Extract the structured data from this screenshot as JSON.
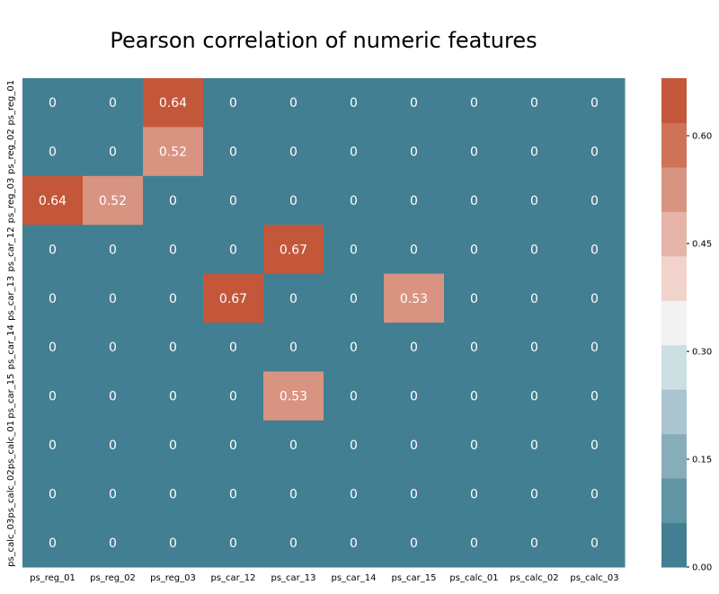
{
  "chart_data": {
    "type": "heatmap",
    "title": "Pearson correlation of numeric features",
    "x_labels": [
      "ps_reg_01",
      "ps_reg_02",
      "ps_reg_03",
      "ps_car_12",
      "ps_car_13",
      "ps_car_14",
      "ps_car_15",
      "ps_calc_01",
      "ps_calc_02",
      "ps_calc_03"
    ],
    "y_labels": [
      "ps_reg_01",
      "ps_reg_02",
      "ps_reg_03",
      "ps_car_12",
      "ps_car_13",
      "ps_car_14",
      "ps_car_15",
      "ps_calc_01",
      "ps_calc_02",
      "ps_calc_03"
    ],
    "values": [
      [
        0,
        0,
        0.64,
        0,
        0,
        0,
        0,
        0,
        0,
        0
      ],
      [
        0,
        0,
        0.52,
        0,
        0,
        0,
        0,
        0,
        0,
        0
      ],
      [
        0.64,
        0.52,
        0,
        0,
        0,
        0,
        0,
        0,
        0,
        0
      ],
      [
        0,
        0,
        0,
        0,
        0.67,
        0,
        0,
        0,
        0,
        0
      ],
      [
        0,
        0,
        0,
        0.67,
        0,
        0,
        0.53,
        0,
        0,
        0
      ],
      [
        0,
        0,
        0,
        0,
        0,
        0,
        0,
        0,
        0,
        0
      ],
      [
        0,
        0,
        0,
        0,
        0.53,
        0,
        0,
        0,
        0,
        0
      ],
      [
        0,
        0,
        0,
        0,
        0,
        0,
        0,
        0,
        0,
        0
      ],
      [
        0,
        0,
        0,
        0,
        0,
        0,
        0,
        0,
        0,
        0
      ],
      [
        0,
        0,
        0,
        0,
        0,
        0,
        0,
        0,
        0,
        0
      ]
    ],
    "annotations": [
      [
        "0",
        "0",
        "0.64",
        "0",
        "0",
        "0",
        "0",
        "0",
        "0",
        "0"
      ],
      [
        "0",
        "0",
        "0.52",
        "0",
        "0",
        "0",
        "0",
        "0",
        "0",
        "0"
      ],
      [
        "0.64",
        "0.52",
        "0",
        "0",
        "0",
        "0",
        "0",
        "0",
        "0",
        "0"
      ],
      [
        "0",
        "0",
        "0",
        "0",
        "0.67",
        "0",
        "0",
        "0",
        "0",
        "0"
      ],
      [
        "0",
        "0",
        "0",
        "0.67",
        "0",
        "0",
        "0.53",
        "0",
        "0",
        "0"
      ],
      [
        "0",
        "0",
        "0",
        "0",
        "0",
        "0",
        "0",
        "0",
        "0",
        "0"
      ],
      [
        "0",
        "0",
        "0",
        "0",
        "0.53",
        "0",
        "0",
        "0",
        "0",
        "0"
      ],
      [
        "0",
        "0",
        "0",
        "0",
        "0",
        "0",
        "0",
        "0",
        "0",
        "0"
      ],
      [
        "0",
        "0",
        "0",
        "0",
        "0",
        "0",
        "0",
        "0",
        "0",
        "0"
      ],
      [
        "0",
        "0",
        "0",
        "0",
        "0",
        "0",
        "0",
        "0",
        "0",
        "0"
      ]
    ],
    "colorbar": {
      "vmin": 0.0,
      "vmax": 0.68,
      "ticks": [
        0.0,
        0.15,
        0.3,
        0.45,
        0.6
      ],
      "tick_labels": [
        "0.00",
        "0.15",
        "0.30",
        "0.45",
        "0.60"
      ],
      "colors": [
        "#427f92",
        "#6194a4",
        "#87adba",
        "#aac5cf",
        "#ccdfe3",
        "#f2f2f2",
        "#f2d3cc",
        "#e6b4a8",
        "#d99381",
        "#cf7258",
        "#c4573a"
      ]
    },
    "grid": false,
    "legend": "colorbar right"
  }
}
